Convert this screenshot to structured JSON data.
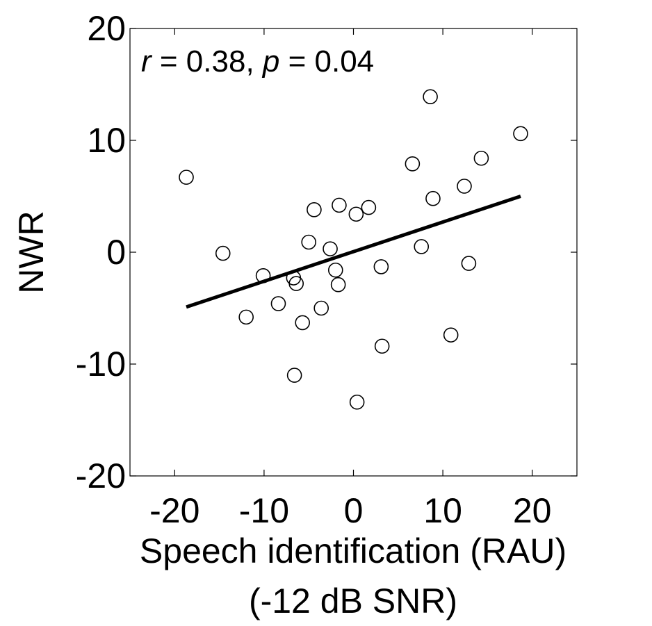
{
  "chart_data": {
    "type": "scatter",
    "title": "",
    "xlabel": "Speech identification (RAU)",
    "xlabel2": "(-12 dB SNR)",
    "ylabel": "NWR",
    "xlim": [
      -25,
      25
    ],
    "ylim": [
      -20,
      20
    ],
    "xticks": [
      -20,
      -10,
      0,
      10,
      20
    ],
    "yticks": [
      -20,
      -10,
      0,
      10,
      20
    ],
    "xtick_labels": [
      "-20",
      "-10",
      "0",
      "10",
      "20"
    ],
    "ytick_labels": [
      "-20",
      "-10",
      "0",
      "10",
      "20"
    ],
    "grid": false,
    "legend": "none",
    "annotation": {
      "r_symbol": "r",
      "r_text": " = 0.38, ",
      "p_symbol": "p",
      "p_text": " = 0.04"
    },
    "points": [
      {
        "x": -18.7,
        "y": 6.7
      },
      {
        "x": -14.6,
        "y": -0.1
      },
      {
        "x": -12.0,
        "y": -5.8
      },
      {
        "x": -10.1,
        "y": -2.1
      },
      {
        "x": -8.4,
        "y": -4.6
      },
      {
        "x": -6.7,
        "y": -2.3
      },
      {
        "x": -6.6,
        "y": -11.0
      },
      {
        "x": -6.4,
        "y": -2.8
      },
      {
        "x": -5.7,
        "y": -6.3
      },
      {
        "x": -5.0,
        "y": 0.9
      },
      {
        "x": -4.4,
        "y": 3.8
      },
      {
        "x": -3.6,
        "y": -5.0
      },
      {
        "x": -2.6,
        "y": 0.3
      },
      {
        "x": -2.0,
        "y": -1.6
      },
      {
        "x": -1.7,
        "y": -2.9
      },
      {
        "x": -1.6,
        "y": 4.2
      },
      {
        "x": 0.3,
        "y": 3.4
      },
      {
        "x": 0.4,
        "y": -13.4
      },
      {
        "x": 1.7,
        "y": 4.0
      },
      {
        "x": 3.1,
        "y": -1.3
      },
      {
        "x": 3.2,
        "y": -8.4
      },
      {
        "x": 6.6,
        "y": 7.9
      },
      {
        "x": 7.6,
        "y": 0.5
      },
      {
        "x": 8.6,
        "y": 13.9
      },
      {
        "x": 8.9,
        "y": 4.8
      },
      {
        "x": 10.9,
        "y": -7.4
      },
      {
        "x": 12.4,
        "y": 5.9
      },
      {
        "x": 12.9,
        "y": -1.0
      },
      {
        "x": 14.3,
        "y": 8.4
      },
      {
        "x": 18.7,
        "y": 10.6
      }
    ],
    "fit_line": {
      "x": [
        -18.7,
        18.7
      ],
      "y": [
        -4.9,
        5.0
      ]
    }
  }
}
